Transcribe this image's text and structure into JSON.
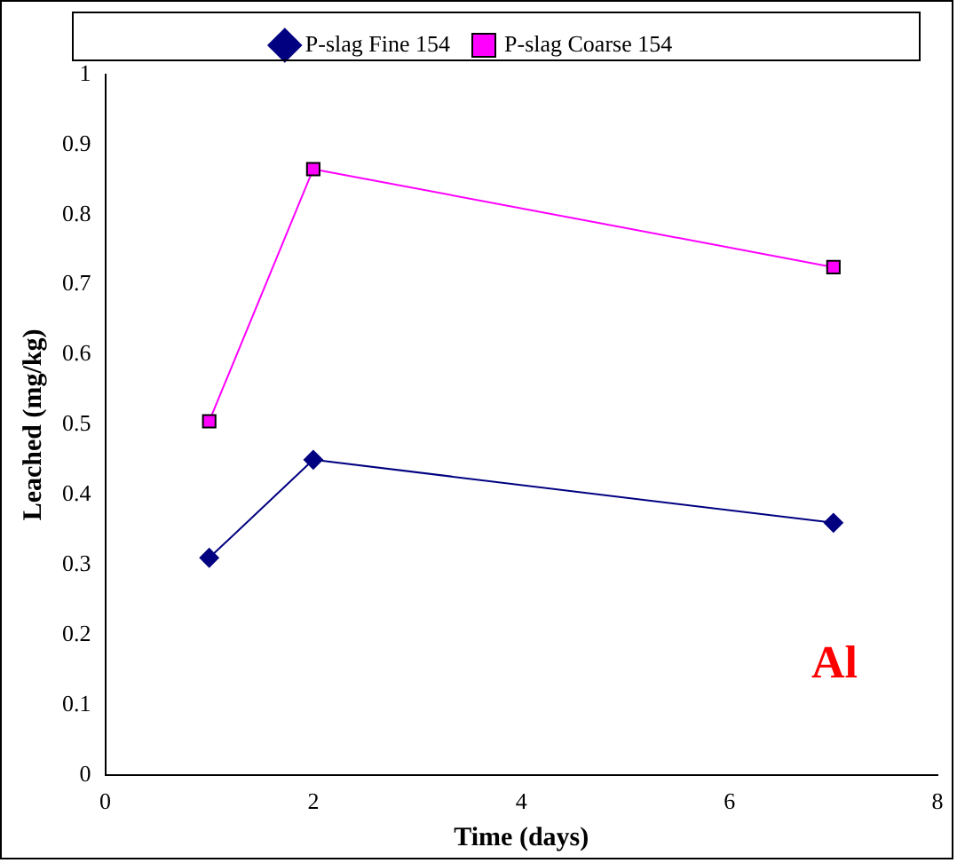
{
  "chart_data": {
    "type": "line",
    "xlabel": "Time (days)",
    "ylabel": "Leached (mg/kg)",
    "x": [
      1,
      2,
      7
    ],
    "series": [
      {
        "name": "P-slag Fine 154",
        "color": "#000080",
        "values": [
          0.31,
          0.45,
          0.36
        ],
        "marker": "diamond"
      },
      {
        "name": "P-slag Coarse 154",
        "color": "#ff00ff",
        "values": [
          0.505,
          0.865,
          0.725
        ],
        "marker": "square"
      }
    ],
    "xlim": [
      0,
      8
    ],
    "xticks": [
      0,
      2,
      4,
      6,
      8
    ],
    "ylim": [
      0,
      1
    ],
    "yticks": [
      0,
      0.1,
      0.2,
      0.3,
      0.4,
      0.5,
      0.6,
      0.7,
      0.8,
      0.9,
      1
    ],
    "grid": false,
    "legend": "top",
    "line_style": "solid",
    "annotations": [
      "Al"
    ]
  }
}
